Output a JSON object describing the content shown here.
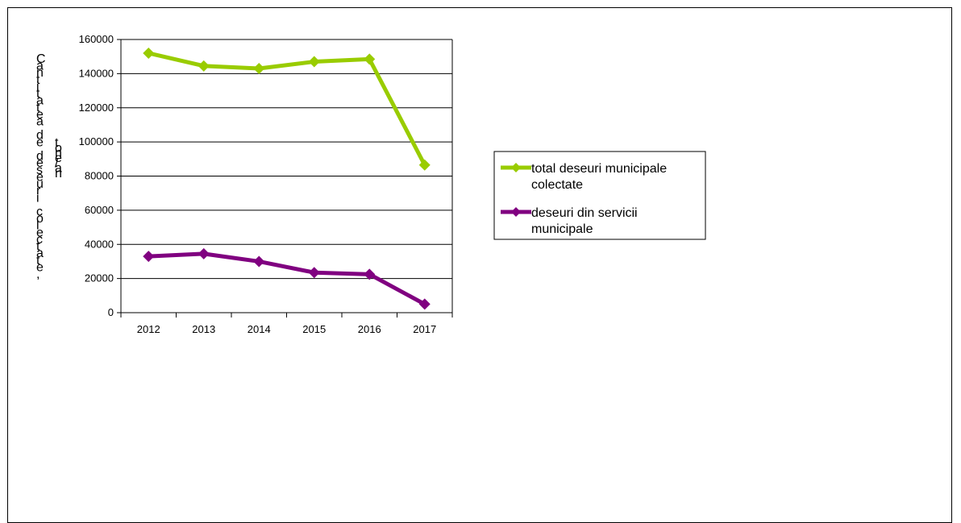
{
  "chart_data": {
    "type": "line",
    "title": "",
    "xlabel": "",
    "ylabel": "Cantitatea de deseuri colectate,",
    "ylabel2": "tone/an",
    "categories": [
      "2012",
      "2013",
      "2014",
      "2015",
      "2016",
      "2017"
    ],
    "ylim": [
      0,
      160000
    ],
    "yticks": [
      "0",
      "20000",
      "40000",
      "60000",
      "80000",
      "100000",
      "120000",
      "140000",
      "160000"
    ],
    "grid": true,
    "legend_position": "right",
    "series": [
      {
        "name": "total deseuri municipale colectate",
        "name_lines": [
          "total deseuri municipale",
          "colectate"
        ],
        "color": "#99CC00",
        "values": [
          152000,
          144500,
          143000,
          147000,
          148500,
          86500
        ]
      },
      {
        "name": "deseuri din servicii municipale",
        "name_lines": [
          "deseuri din servicii",
          "municipale"
        ],
        "color": "#800080",
        "values": [
          33000,
          34500,
          30000,
          23500,
          22500,
          5000
        ]
      }
    ]
  }
}
